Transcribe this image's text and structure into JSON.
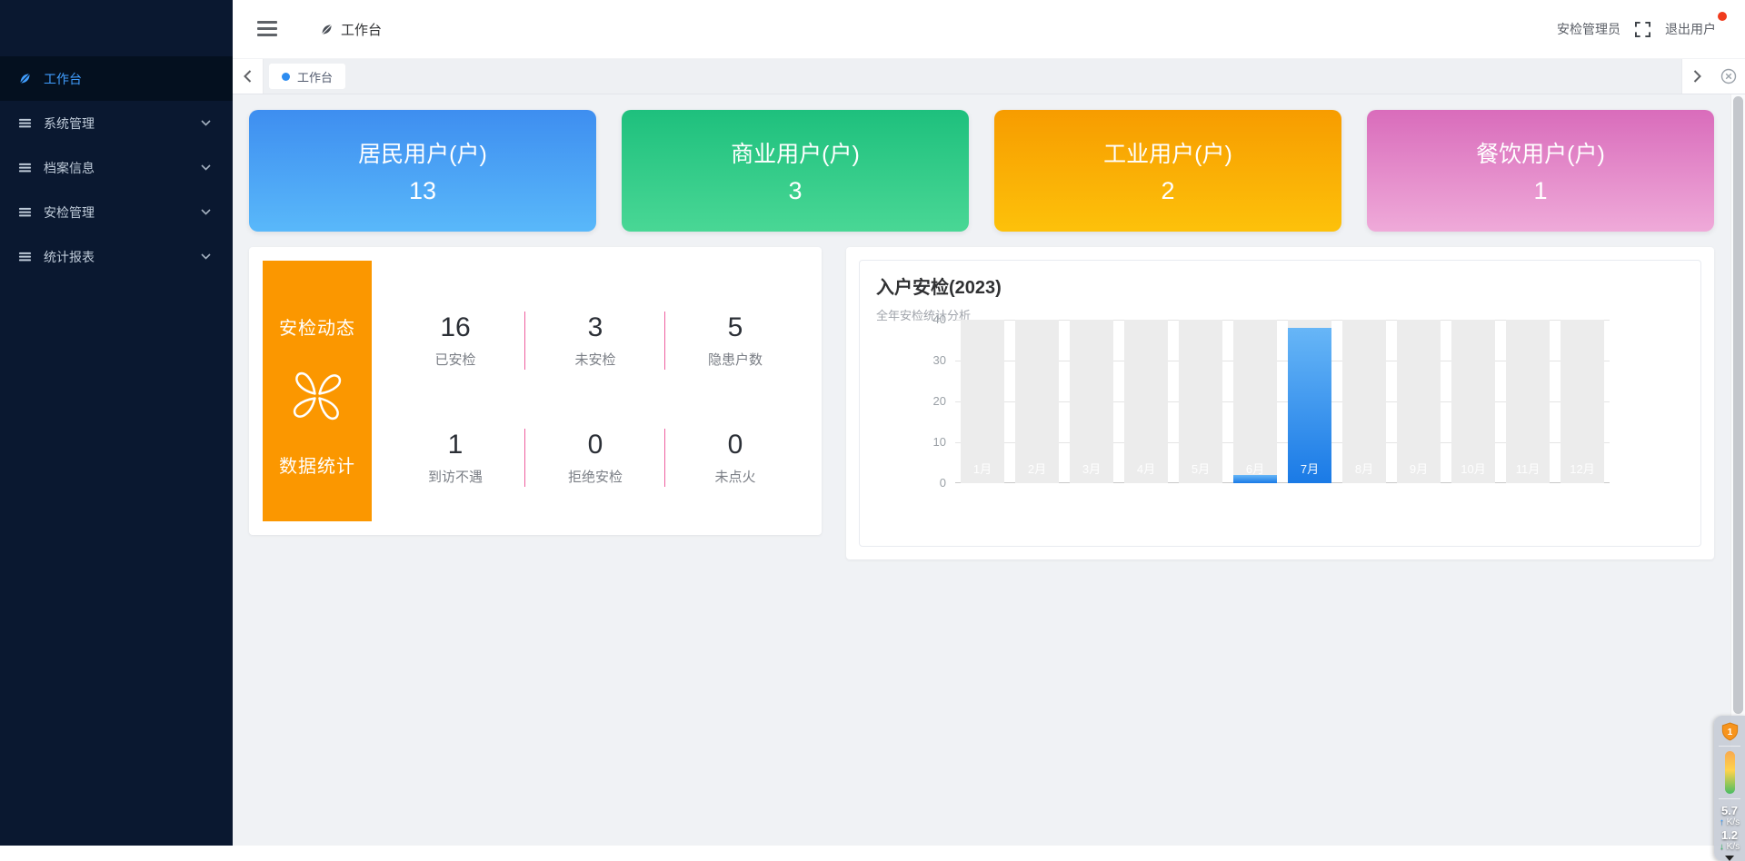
{
  "sidebar": {
    "items": [
      {
        "label": "工作台",
        "active": true,
        "chevron": false
      },
      {
        "label": "系统管理",
        "active": false,
        "chevron": true
      },
      {
        "label": "档案信息",
        "active": false,
        "chevron": true
      },
      {
        "label": "安检管理",
        "active": false,
        "chevron": true
      },
      {
        "label": "统计报表",
        "active": false,
        "chevron": true
      }
    ]
  },
  "header": {
    "breadcrumb": "工作台",
    "username": "安检管理员",
    "logout_label": "退出用户"
  },
  "tabbar": {
    "active_tab": "工作台"
  },
  "stat_cards": [
    {
      "title": "居民用户(户)",
      "value": "13",
      "color_from": "#3e8ef0",
      "color_to": "#59b8fa"
    },
    {
      "title": "商业用户(户)",
      "value": "3",
      "color_from": "#1ec07d",
      "color_to": "#49d795"
    },
    {
      "title": "工业用户(户)",
      "value": "2",
      "color_from": "#f79c00",
      "color_to": "#fdc10a"
    },
    {
      "title": "餐饮用户(户)",
      "value": "1",
      "color_from": "#d96cbb",
      "color_to": "#efaad9"
    }
  ],
  "safety_panel": {
    "banner_title": "安检动态",
    "banner_subtitle": "数据统计",
    "banner_color": "#fb9700",
    "divider_color": "#ee5f9f",
    "stats": [
      {
        "value": "16",
        "label": "已安检"
      },
      {
        "value": "3",
        "label": "未安检"
      },
      {
        "value": "5",
        "label": "隐患户数"
      },
      {
        "value": "1",
        "label": "到访不遇"
      },
      {
        "value": "0",
        "label": "拒绝安检"
      },
      {
        "value": "0",
        "label": "未点火"
      }
    ]
  },
  "chart_data": {
    "type": "bar",
    "title": "入户安检(2023)",
    "subtitle": "全年安检统计分析",
    "categories": [
      "1月",
      "2月",
      "3月",
      "4月",
      "5月",
      "6月",
      "7月",
      "8月",
      "9月",
      "10月",
      "11月",
      "12月"
    ],
    "values": [
      0,
      0,
      0,
      0,
      0,
      2,
      38,
      0,
      0,
      0,
      0,
      0
    ],
    "ylim": [
      0,
      40
    ],
    "yticks": [
      0,
      10,
      20,
      30,
      40
    ],
    "grid": true,
    "legend": false,
    "bar_color_from": "#67b6f7",
    "bar_color_to": "#1a7ae6",
    "track_color": "#ececec"
  },
  "net_monitor": {
    "badge": "1",
    "upload": "5.7",
    "upload_unit": "K/s",
    "download": "1.2",
    "download_unit": "K/s"
  }
}
